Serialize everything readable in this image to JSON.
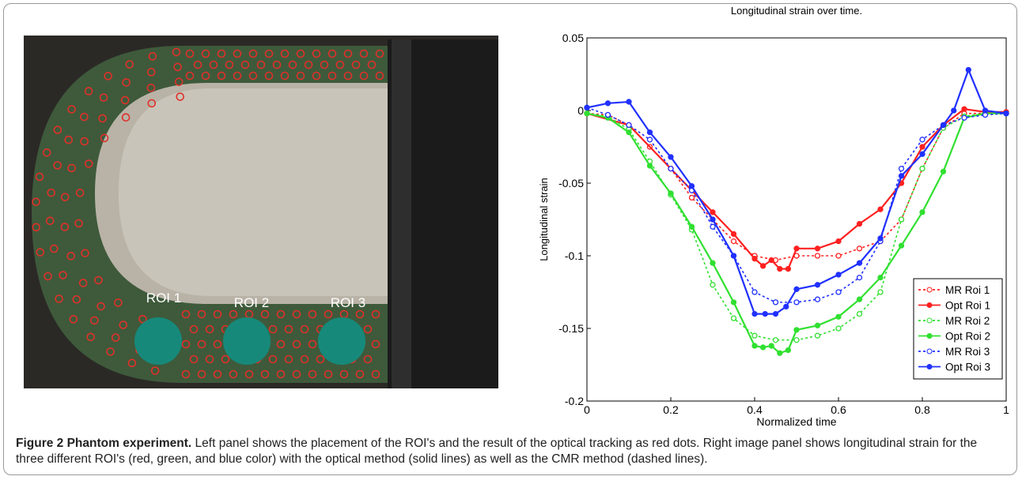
{
  "photo": {
    "roi_labels": [
      "ROI 1",
      "ROI 2",
      "ROI 3"
    ]
  },
  "chart_data": {
    "type": "line",
    "title": "Longitudinal strain over time.",
    "x_label": "Normalized time",
    "y_label": "Longitudinal strain",
    "xlim": [
      0,
      1
    ],
    "ylim": [
      -0.2,
      0.05
    ],
    "xticks": [
      0,
      0.2,
      0.4,
      0.6,
      0.8,
      1
    ],
    "yticks": [
      0.05,
      0,
      -0.05,
      -0.1,
      -0.15,
      -0.2
    ],
    "grid": false,
    "legend": "lower right",
    "series": [
      {
        "name": "MR Roi 1",
        "color": "#ff2020",
        "dashed": true,
        "x": [
          0,
          0.05,
          0.1,
          0.15,
          0.2,
          0.25,
          0.3,
          0.35,
          0.4,
          0.45,
          0.5,
          0.55,
          0.6,
          0.65,
          0.7,
          0.75,
          0.8,
          0.85,
          0.9,
          0.95,
          1
        ],
        "values": [
          -0.002,
          -0.003,
          -0.01,
          -0.025,
          -0.04,
          -0.06,
          -0.075,
          -0.09,
          -0.1,
          -0.103,
          -0.1,
          -0.1,
          -0.1,
          -0.095,
          -0.09,
          -0.075,
          -0.04,
          -0.012,
          -0.002,
          -0.002,
          -0.002
        ]
      },
      {
        "name": "Opt Roi 1",
        "color": "#ff2020",
        "dashed": false,
        "x": [
          0,
          0.1,
          0.2,
          0.25,
          0.3,
          0.35,
          0.4,
          0.42,
          0.44,
          0.46,
          0.48,
          0.5,
          0.55,
          0.6,
          0.65,
          0.7,
          0.75,
          0.8,
          0.85,
          0.9,
          0.95,
          1
        ],
        "values": [
          -0.002,
          -0.01,
          -0.04,
          -0.055,
          -0.07,
          -0.085,
          -0.102,
          -0.107,
          -0.103,
          -0.109,
          -0.109,
          -0.095,
          -0.095,
          -0.09,
          -0.078,
          -0.068,
          -0.05,
          -0.025,
          -0.01,
          0.001,
          -0.001,
          -0.001
        ]
      },
      {
        "name": "MR Roi 2",
        "color": "#30e030",
        "dashed": true,
        "x": [
          0,
          0.05,
          0.1,
          0.15,
          0.2,
          0.25,
          0.3,
          0.35,
          0.4,
          0.45,
          0.5,
          0.55,
          0.6,
          0.65,
          0.7,
          0.75,
          0.8,
          0.85,
          0.9,
          0.95,
          1
        ],
        "values": [
          -0.002,
          -0.004,
          -0.013,
          -0.035,
          -0.058,
          -0.082,
          -0.12,
          -0.143,
          -0.155,
          -0.158,
          -0.158,
          -0.155,
          -0.15,
          -0.14,
          -0.125,
          -0.075,
          -0.04,
          -0.012,
          -0.004,
          -0.002,
          -0.002
        ]
      },
      {
        "name": "Opt Roi 2",
        "color": "#30e030",
        "dashed": false,
        "x": [
          0,
          0.05,
          0.1,
          0.15,
          0.2,
          0.25,
          0.3,
          0.35,
          0.4,
          0.42,
          0.44,
          0.46,
          0.48,
          0.5,
          0.55,
          0.6,
          0.65,
          0.7,
          0.75,
          0.8,
          0.85,
          0.9,
          0.95,
          1
        ],
        "values": [
          -0.002,
          -0.005,
          -0.015,
          -0.038,
          -0.057,
          -0.08,
          -0.105,
          -0.132,
          -0.162,
          -0.163,
          -0.162,
          -0.167,
          -0.165,
          -0.151,
          -0.148,
          -0.142,
          -0.13,
          -0.115,
          -0.093,
          -0.07,
          -0.042,
          -0.005,
          -0.002,
          -0.002
        ]
      },
      {
        "name": "MR Roi 3",
        "color": "#2030ff",
        "dashed": true,
        "x": [
          0,
          0.05,
          0.1,
          0.15,
          0.2,
          0.25,
          0.3,
          0.35,
          0.4,
          0.45,
          0.5,
          0.55,
          0.6,
          0.65,
          0.7,
          0.75,
          0.8,
          0.85,
          0.9,
          0.95,
          1
        ],
        "values": [
          0.002,
          -0.003,
          -0.01,
          -0.02,
          -0.04,
          -0.055,
          -0.08,
          -0.1,
          -0.125,
          -0.132,
          -0.132,
          -0.13,
          -0.125,
          -0.115,
          -0.09,
          -0.04,
          -0.02,
          -0.01,
          -0.005,
          -0.003,
          -0.002
        ]
      },
      {
        "name": "Opt Roi 3",
        "color": "#2030ff",
        "dashed": false,
        "x": [
          0,
          0.05,
          0.1,
          0.15,
          0.2,
          0.25,
          0.3,
          0.35,
          0.4,
          0.425,
          0.45,
          0.475,
          0.5,
          0.55,
          0.6,
          0.65,
          0.7,
          0.75,
          0.8,
          0.85,
          0.875,
          0.91,
          0.95,
          1
        ],
        "values": [
          0.002,
          0.005,
          0.006,
          -0.015,
          -0.032,
          -0.052,
          -0.075,
          -0.1,
          -0.14,
          -0.14,
          -0.14,
          -0.135,
          -0.123,
          -0.12,
          -0.113,
          -0.105,
          -0.088,
          -0.045,
          -0.03,
          -0.01,
          0,
          0.028,
          0,
          -0.002
        ]
      }
    ]
  },
  "caption": {
    "label": "Figure 2 Phantom experiment.",
    "text": "Left panel shows the placement of the ROI's and the result of the optical tracking as red dots. Right image panel shows longitudinal strain for the three different ROI's (red, green, and blue color) with the optical method (solid lines) as well as the CMR method (dashed lines)."
  }
}
